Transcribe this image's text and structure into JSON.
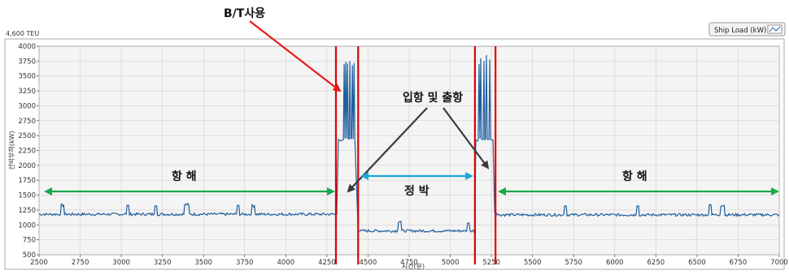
{
  "corner_label": "4,600 TEU",
  "legend": {
    "label": "Ship  Load (kW)"
  },
  "annotations": {
    "bt": "B/T사용",
    "port": "입항 및 출항",
    "voyage_left": "항 해",
    "mooring": "정 박",
    "voyage_right": "항 해"
  },
  "colors": {
    "series": "#1f5f9e",
    "vline": "#e00000",
    "green": "#1aa84a",
    "cyan": "#1aa9d6",
    "arrow_red": "#e81a1a",
    "arrow_dark": "#3a3a3a",
    "plot_bg": "#f4f4f4",
    "grid": "#cfcfcf"
  },
  "chart_data": {
    "type": "line",
    "title": "",
    "xlabel": "시간(분)",
    "ylabel": "선박부하(kW)",
    "xlim": [
      2500,
      7000
    ],
    "ylim": [
      500,
      4000
    ],
    "xticks": [
      2500,
      2750,
      3000,
      3250,
      3500,
      3750,
      4000,
      4250,
      4500,
      4750,
      5000,
      5250,
      5500,
      5750,
      6000,
      6250,
      6500,
      6750,
      7000
    ],
    "yticks": [
      500,
      750,
      1000,
      1250,
      1500,
      1750,
      2000,
      2250,
      2500,
      2750,
      3000,
      3250,
      3500,
      3750,
      4000
    ],
    "grid": true,
    "legend_position": "top-right",
    "vertical_lines_x": [
      4305,
      4440,
      5150,
      5275
    ],
    "series": [
      {
        "name": "Ship  Load (kW)",
        "x": [
          2500,
          2630,
          2635,
          2650,
          2655,
          3030,
          3035,
          3045,
          3050,
          3200,
          3205,
          3215,
          3220,
          3380,
          3385,
          3410,
          3415,
          3700,
          3705,
          3715,
          3720,
          3790,
          3795,
          3810,
          3815,
          4300,
          4310,
          4320,
          4350,
          4355,
          4360,
          4365,
          4370,
          4375,
          4380,
          4385,
          4390,
          4395,
          4400,
          4405,
          4410,
          4415,
          4420,
          4440,
          4450,
          4460,
          4680,
          4685,
          4700,
          4705,
          5100,
          5105,
          5115,
          5120,
          5150,
          5155,
          5170,
          5175,
          5180,
          5185,
          5190,
          5195,
          5200,
          5205,
          5210,
          5215,
          5220,
          5225,
          5230,
          5235,
          5240,
          5245,
          5250,
          5255,
          5260,
          5270,
          5280,
          5285,
          5290,
          5690,
          5695,
          5705,
          5710,
          6130,
          6135,
          6145,
          6150,
          6570,
          6575,
          6585,
          6590,
          6640,
          6645,
          6665,
          6670,
          7000
        ],
        "y": [
          1180,
          1180,
          1330,
          1330,
          1180,
          1180,
          1330,
          1330,
          1180,
          1180,
          1320,
          1320,
          1180,
          1180,
          1340,
          1340,
          1180,
          1180,
          1330,
          1330,
          1180,
          1180,
          1320,
          1320,
          1180,
          1180,
          1180,
          2430,
          2430,
          3700,
          2450,
          3740,
          2450,
          3710,
          2450,
          2440,
          3750,
          2450,
          2450,
          3680,
          2440,
          3720,
          2430,
          900,
          900,
          900,
          900,
          1060,
          1060,
          900,
          900,
          1030,
          1030,
          900,
          900,
          2430,
          2430,
          3700,
          2450,
          3800,
          2440,
          2430,
          2440,
          3750,
          2430,
          2440,
          3850,
          2440,
          2430,
          2440,
          3780,
          2430,
          2430,
          2430,
          2430,
          1200,
          1200,
          1170,
          1170,
          1170,
          1320,
          1320,
          1170,
          1170,
          1320,
          1320,
          1170,
          1170,
          1340,
          1340,
          1170,
          1170,
          1330,
          1330,
          1170,
          1170
        ]
      }
    ]
  }
}
